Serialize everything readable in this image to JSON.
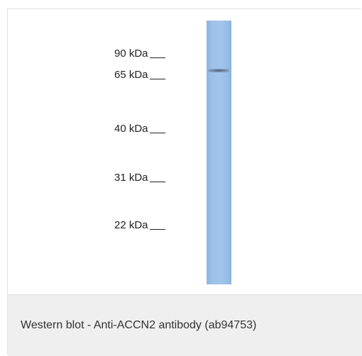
{
  "blot": {
    "markers": [
      {
        "label": "90 kDa"
      },
      {
        "label": "65 kDa"
      },
      {
        "label": "40 kDa"
      },
      {
        "label": "31 kDa"
      },
      {
        "label": "22 kDa"
      }
    ],
    "lane_color": "#9dc1ea",
    "band_color": "#4a5a72"
  },
  "caption": {
    "text": "Western blot - Anti-ACCN2 antibody (ab94753)"
  }
}
